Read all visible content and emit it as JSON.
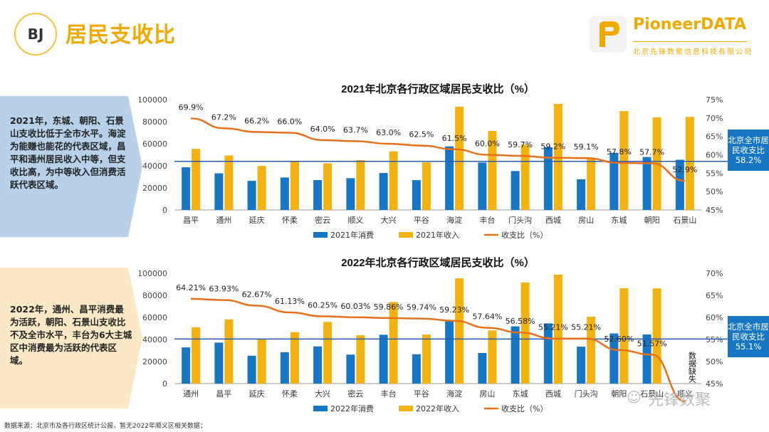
{
  "header": {
    "badge": "BJ",
    "title": "居民支收比",
    "logo_name": "PioneerDATA",
    "logo_sub": "北京先锋数聚信息科技有限公司"
  },
  "panels": [
    {
      "text": "2021年，东城、朝阳、石景山支收比低于全市水平。海淀为能赚也能花的代表区域，昌平和通州居民收入中等，但支收比高，为中等收入但消费活跃代表区域。",
      "color": "#b8d1e8"
    },
    {
      "text": "2022年，通州、昌平消费最为活跃，朝阳、石景山支收比不及全市水平，丰台为6大主城区中消费最为活跃的代表区域。",
      "color": "#fbe8c6"
    }
  ],
  "callouts": [
    {
      "text": "北京全市居民收支比58.2%"
    },
    {
      "text": "北京全市居民收支比55.1%"
    }
  ],
  "footer": "数据来源：北京市及各行政区统计公报，暂无2022年顺义区相关数据；",
  "watermark": "先锋数聚",
  "chart_data": [
    {
      "type": "bar",
      "title": "2021年北京各行政区域居民支收比（%）",
      "categories": [
        "昌平",
        "通州",
        "延庆",
        "怀柔",
        "密云",
        "顺义",
        "大兴",
        "平谷",
        "海淀",
        "丰台",
        "门头沟",
        "西城",
        "房山",
        "东城",
        "朝阳",
        "石景山"
      ],
      "series": [
        {
          "name": "2021年消费",
          "values": [
            38700,
            33200,
            26400,
            29400,
            27100,
            28800,
            33500,
            27000,
            57600,
            43000,
            35300,
            56900,
            27800,
            51800,
            48000,
            45500
          ],
          "color": "#1777c4"
        },
        {
          "name": "2021年收入",
          "values": [
            55400,
            49400,
            39900,
            44600,
            42300,
            45200,
            53200,
            43200,
            93600,
            71700,
            59100,
            96100,
            47100,
            89600,
            83900,
            84400
          ],
          "color": "#f2b212"
        }
      ],
      "line": {
        "name": "收支比（%）",
        "values": [
          69.9,
          67.2,
          66.2,
          66.0,
          64.0,
          63.7,
          63.0,
          62.5,
          61.5,
          60.0,
          59.7,
          59.2,
          59.1,
          57.8,
          57.7,
          52.9
        ],
        "labels": [
          "69.9%",
          "67.2%",
          "66.2%",
          "66.0%",
          "64.0%",
          "63.7%",
          "63.0%",
          "62.5%",
          "61.5%",
          "60.0%",
          "59.7%",
          "59.2%",
          "59.1%",
          "57.8%",
          "57.7%",
          "52.9%"
        ],
        "color": "#e8701c"
      },
      "ref_line": 58.2,
      "ylim": [
        0,
        100000
      ],
      "yticks": [
        "0",
        "20000",
        "40000",
        "60000",
        "80000",
        "100000"
      ],
      "y2lim": [
        45,
        75
      ],
      "y2ticks": [
        "45%",
        "50%",
        "55%",
        "60%",
        "65%",
        "70%",
        "75%"
      ]
    },
    {
      "type": "bar",
      "title": "2022年北京各行政区域居民支收比（%）",
      "categories": [
        "通州",
        "昌平",
        "延庆",
        "怀柔",
        "大兴",
        "密云",
        "丰台",
        "平谷",
        "海淀",
        "房山",
        "东城",
        "西城",
        "门头沟",
        "朝阳",
        "石景山",
        "顺义"
      ],
      "series": [
        {
          "name": "2022年消费",
          "values": [
            32800,
            37200,
            25300,
            28500,
            33700,
            26300,
            44300,
            26600,
            56500,
            27800,
            51900,
            54600,
            33500,
            45500,
            44500,
            null
          ],
          "color": "#1777c4"
        },
        {
          "name": "2022年收入",
          "values": [
            51100,
            58200,
            40400,
            46600,
            55900,
            43800,
            74000,
            44500,
            95400,
            48200,
            91700,
            98800,
            60700,
            86500,
            86300,
            null
          ],
          "color": "#f2b212"
        }
      ],
      "line": {
        "name": "收支比（%）",
        "values": [
          64.21,
          63.93,
          62.67,
          61.13,
          60.25,
          60.03,
          59.86,
          59.74,
          59.23,
          57.64,
          56.58,
          55.21,
          55.21,
          52.6,
          51.57,
          41.0
        ],
        "labels": [
          "64.21%",
          "63.93%",
          "62.67%",
          "61.13%",
          "60.25%",
          "60.03%",
          "59.86%",
          "59.74%",
          "59.23%",
          "57.64%",
          "56.58%",
          "55.21%",
          "55.21%",
          "52.60%",
          "51.57%",
          ""
        ],
        "color": "#e8701c"
      },
      "ref_line": 55.1,
      "ylim": [
        0,
        100000
      ],
      "yticks": [
        "0",
        "20000",
        "40000",
        "60000",
        "80000",
        "100000"
      ],
      "y2lim": [
        45,
        70
      ],
      "y2ticks": [
        "45%",
        "50%",
        "55%",
        "60%",
        "65%",
        "70%"
      ],
      "missing_note": "数据缺失"
    }
  ]
}
